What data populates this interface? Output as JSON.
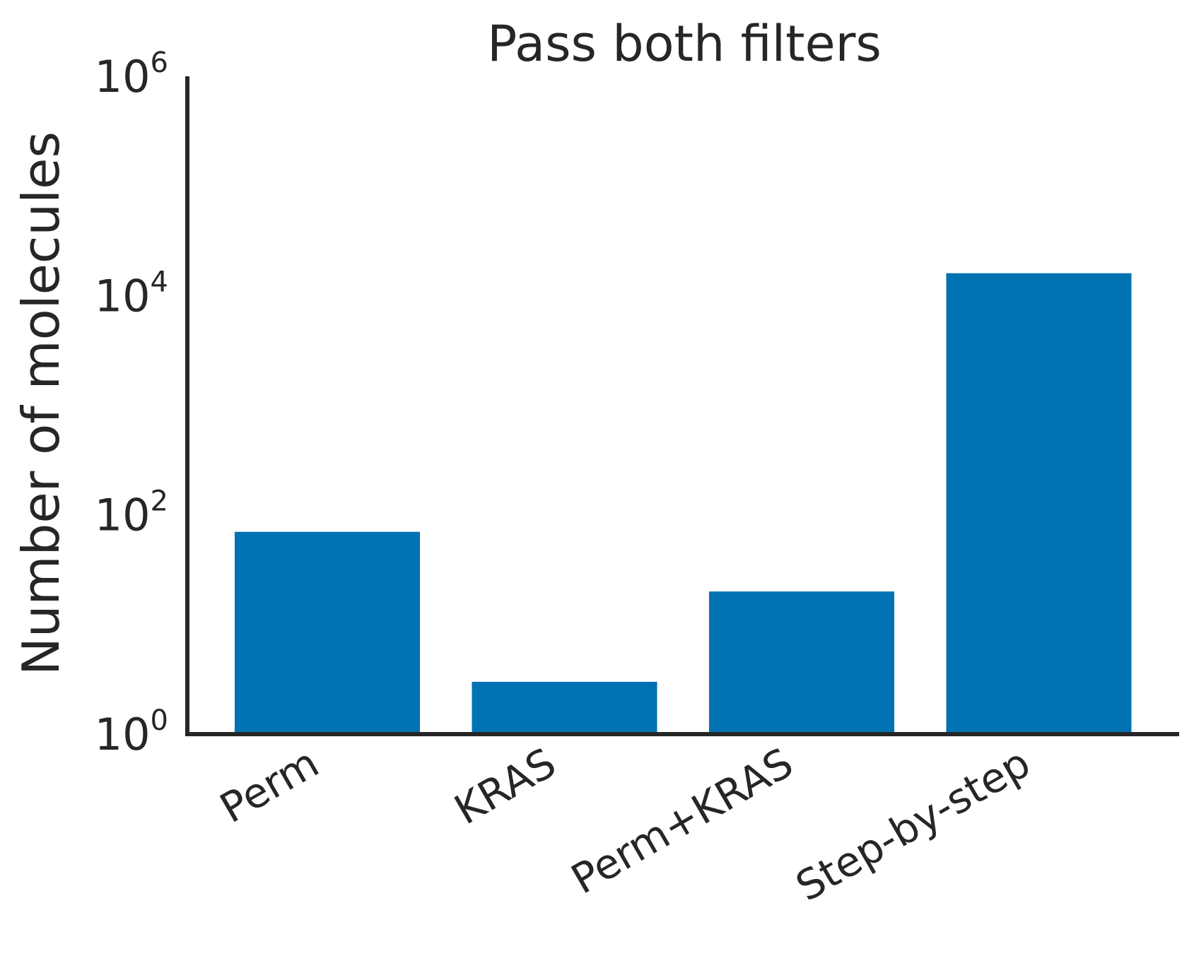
{
  "chart_data": {
    "type": "bar",
    "title": "Pass both filters",
    "xlabel": "",
    "ylabel": "Number of molecules",
    "yscale": "log",
    "ylim": [
      1,
      1000000
    ],
    "categories": [
      "Perm",
      "KRAS",
      "Perm+KRAS",
      "Step-by-step"
    ],
    "values": [
      70,
      3,
      20,
      16000
    ],
    "yticks": [
      {
        "base": "10",
        "exp": "0",
        "value": 1
      },
      {
        "base": "10",
        "exp": "2",
        "value": 100
      },
      {
        "base": "10",
        "exp": "4",
        "value": 10000
      },
      {
        "base": "10",
        "exp": "6",
        "value": 1000000
      }
    ],
    "bar_color": "#0072b2",
    "grid": false,
    "legend": "none"
  }
}
